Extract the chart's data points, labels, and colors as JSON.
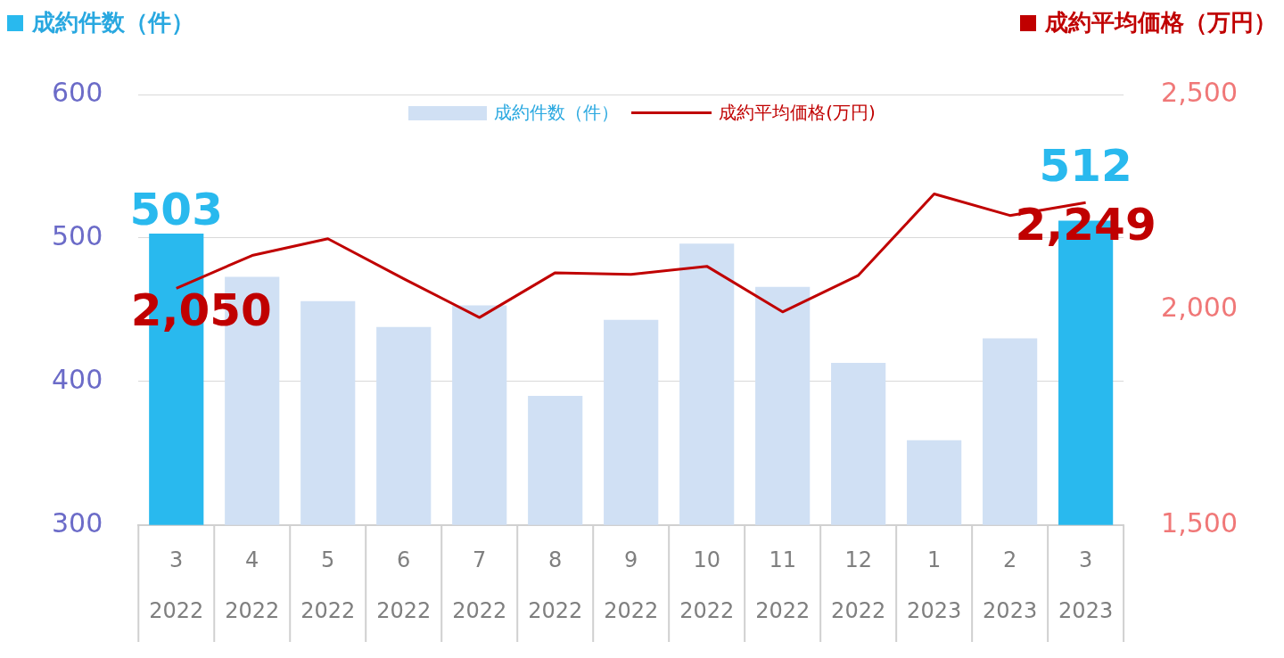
{
  "chart_data": {
    "type": "bar",
    "ylabel": "成約件数（件）",
    "y2label": "成約平均価格（万円）",
    "categories": [
      "3 2022",
      "4 2022",
      "5 2022",
      "6 2022",
      "7 2022",
      "8 2022",
      "9 2022",
      "10 2022",
      "11 2022",
      "12 2022",
      "1 2023",
      "2 2023",
      "3 2023"
    ],
    "series": [
      {
        "name": "成約件数（件）",
        "color": "#d0e0f4",
        "colors": [
          "#29b9ee",
          "#d0e0f4",
          "#d0e0f4",
          "#d0e0f4",
          "#d0e0f4",
          "#d0e0f4",
          "#d0e0f4",
          "#d0e0f4",
          "#d0e0f4",
          "#d0e0f4",
          "#d0e0f4",
          "#d0e0f4",
          "#29b9ee"
        ],
        "values": [
          503,
          473,
          456,
          438,
          453,
          390,
          443,
          496,
          466,
          413,
          359,
          430,
          512
        ],
        "value_labels": [
          "503",
          null,
          null,
          null,
          null,
          null,
          null,
          null,
          null,
          null,
          null,
          null,
          "512"
        ]
      },
      {
        "type": "line",
        "name": "成約平均価格(万円)",
        "color": "#c00000",
        "axis": "y2",
        "values": [
          2050,
          2126,
          2165,
          2072,
          1982,
          2086,
          2082,
          2101,
          1995,
          2080,
          2269,
          2219,
          2249
        ],
        "value_labels": [
          "2,050",
          null,
          null,
          null,
          null,
          null,
          null,
          null,
          null,
          null,
          null,
          null,
          "2,249"
        ]
      }
    ],
    "ylim": [
      300,
      600
    ],
    "yticks": [
      300,
      400,
      500,
      600
    ],
    "y2lim": [
      1500,
      2500
    ],
    "y2ticks": [
      {
        "value": 1500,
        "label": "1,500"
      },
      {
        "value": 2000,
        "label": "2,000"
      },
      {
        "value": 2500,
        "label": "2,500"
      }
    ],
    "grid": "y",
    "legend": "top",
    "marker": "none"
  }
}
